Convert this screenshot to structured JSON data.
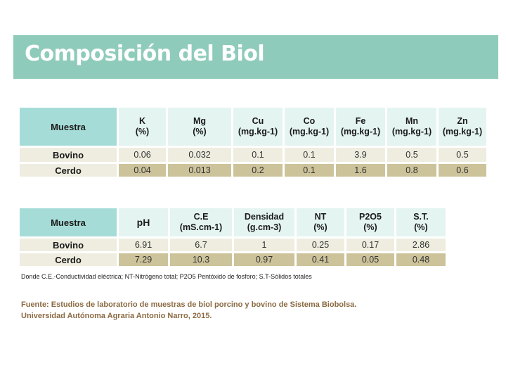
{
  "title": "Composición del Biol",
  "table1": {
    "row_header": "Muestra",
    "columns": [
      {
        "line1": "K",
        "line2": "(%)"
      },
      {
        "line1": "Mg",
        "line2": "(%)"
      },
      {
        "line1": "Cu",
        "line2": "(mg.kg-1)"
      },
      {
        "line1": "Co",
        "line2": "(mg.kg-1)"
      },
      {
        "line1": "Fe",
        "line2": "(mg.kg-1)"
      },
      {
        "line1": "Mn",
        "line2": "(mg.kg-1)"
      },
      {
        "line1": "Zn",
        "line2": "(mg.kg-1)"
      }
    ],
    "rows": [
      {
        "label": "Bovino",
        "values": [
          "0.06",
          "0.032",
          "0.1",
          "0.1",
          "3.9",
          "0.5",
          "0.5"
        ]
      },
      {
        "label": "Cerdo",
        "values": [
          "0.04",
          "0.013",
          "0.2",
          "0.1",
          "1.6",
          "0.8",
          "0.6"
        ]
      }
    ]
  },
  "table2": {
    "row_header": "Muestra",
    "columns": [
      {
        "line1": "pH",
        "line2": ""
      },
      {
        "line1": "C.E",
        "line2": "(mS.cm-1)"
      },
      {
        "line1": "Densidad",
        "line2": "(g.cm-3)"
      },
      {
        "line1": "NT",
        "line2": "(%)"
      },
      {
        "line1": "P2O5",
        "line2": "(%)"
      },
      {
        "line1": "S.T.",
        "line2": "(%)"
      }
    ],
    "rows": [
      {
        "label": "Bovino",
        "values": [
          "6.91",
          "6.7",
          "1",
          "0.25",
          "0.17",
          "2.86"
        ]
      },
      {
        "label": "Cerdo",
        "values": [
          "7.29",
          "10.3",
          "0.97",
          "0.41",
          "0.05",
          "0.48"
        ]
      }
    ]
  },
  "note": "Donde C.E.-Conductividad eléctrica; NT-Nitrógeno total; P2O5 Pentóxido de fosforo; S.T-Sólidos totales",
  "source": {
    "line1": "Fuente: Estudios de laboratorio de muestras de biol porcino y bovino de Sistema Biobolsa.",
    "line2": "Universidad Autónoma Agraria Antonio Narro, 2015."
  }
}
